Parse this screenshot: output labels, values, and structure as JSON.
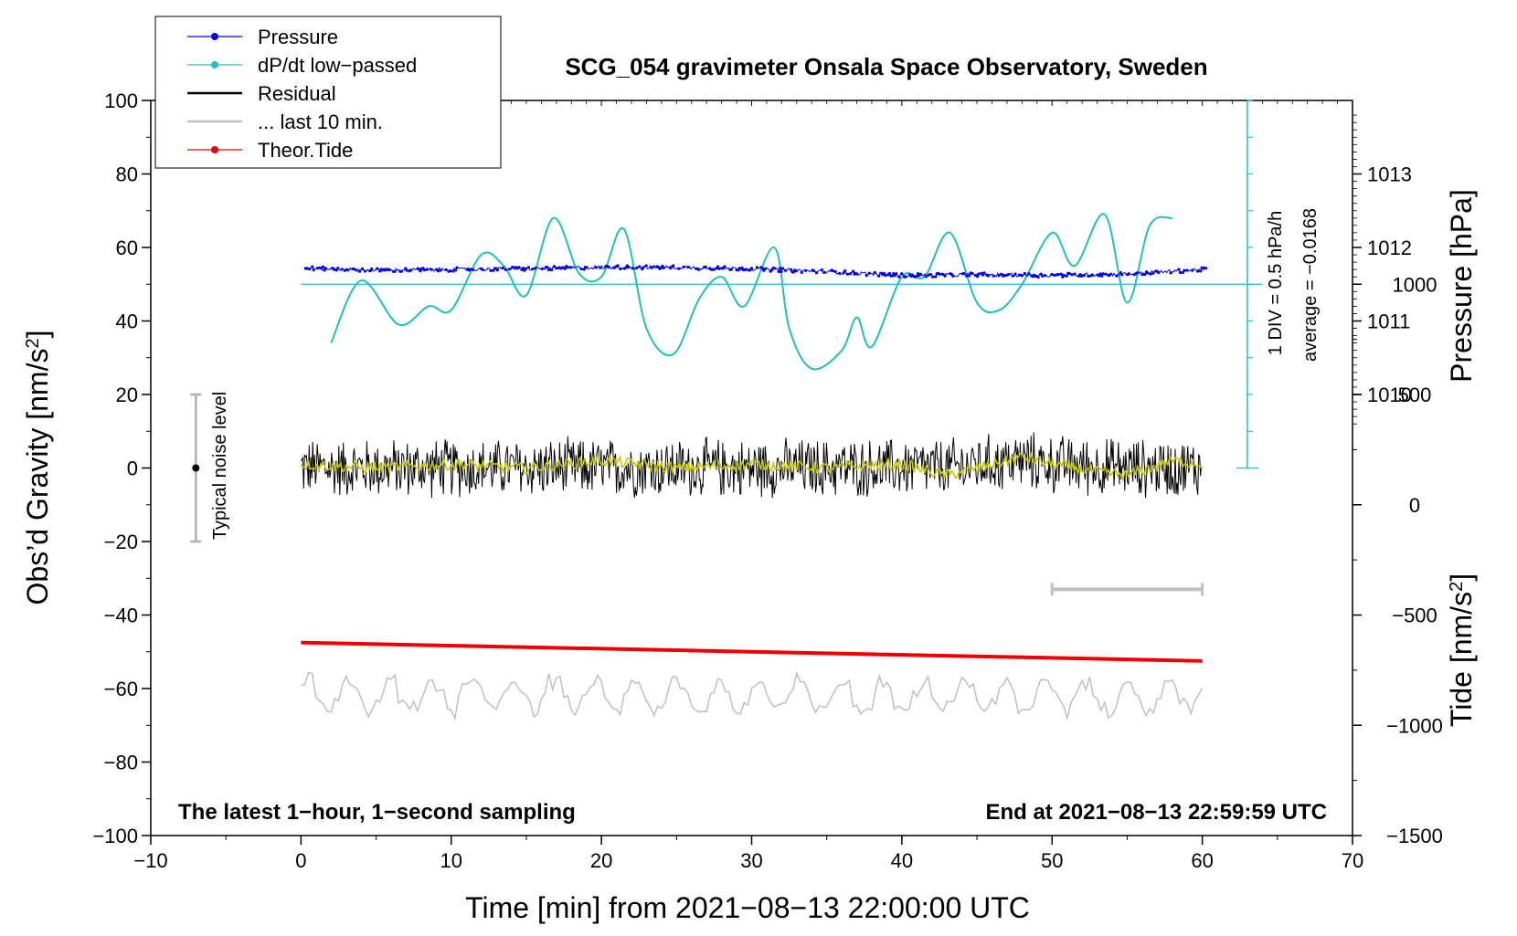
{
  "chart_data": {
    "type": "line",
    "title": "SCG_054 gravimeter Onsala Space Observatory, Sweden",
    "xlabel": "Time [min] from 2021−08−13 22:00:00 UTC",
    "ylabel_left_main": "Obs’d Gravity [nm/s",
    "ylabel_left_sup": "2",
    "ylabel_left_end": "]",
    "ylabel_right_pressure": "Pressure [hPa]",
    "ylabel_right_tide_main": "Tide [nm/s",
    "ylabel_right_tide_sup": "2",
    "ylabel_right_tide_end": "]",
    "xlim": [
      -10,
      70
    ],
    "ylim": [
      -100,
      100
    ],
    "x_ticks": [
      "−10",
      "0",
      "10",
      "20",
      "30",
      "40",
      "50",
      "60",
      "70"
    ],
    "x_tick_values": [
      -10,
      0,
      10,
      20,
      30,
      40,
      50,
      60,
      70
    ],
    "y_ticks": [
      "−100",
      "−80",
      "−60",
      "−40",
      "−20",
      "0",
      "20",
      "40",
      "60",
      "80",
      "100"
    ],
    "y_tick_values": [
      -100,
      -80,
      -60,
      -40,
      -20,
      0,
      20,
      40,
      60,
      80,
      100
    ],
    "pressure_ticks": [
      "1010",
      "1011",
      "1012",
      "1013"
    ],
    "pressure_tick_values": [
      1010,
      1011,
      1012,
      1013
    ],
    "pressure_axis": {
      "value_at_gravity_20": 1010,
      "hpa_per_20_nms2": 1
    },
    "tide_ticks": [
      "−1500",
      "−1000",
      "−500",
      "0",
      "500",
      "1000"
    ],
    "tide_tick_values": [
      -1500,
      -1000,
      -500,
      0,
      500,
      1000
    ],
    "tide_axis": {
      "value_at_gravity_minus_100": -1500,
      "nms2_per_gravity_unit": 16.667
    },
    "legend": [
      {
        "label": "Pressure",
        "color": "#0000ee",
        "style": "line-dot"
      },
      {
        "label": "dP/dt low−passed",
        "color": "#20c0c0",
        "style": "line-dot"
      },
      {
        "label": "Residual",
        "color": "#000000",
        "style": "line"
      },
      {
        "label": "... last 10 min.",
        "color": "#c0c0c0",
        "style": "line"
      },
      {
        "label": "Theor.Tide",
        "color": "#ee0000",
        "style": "line-dot"
      }
    ],
    "series": [
      {
        "name": "Pressure",
        "color": "#0000ee",
        "axis": "pressure_hpa",
        "x": [
          0,
          5,
          10,
          15,
          20,
          25,
          30,
          35,
          40,
          45,
          50,
          55,
          60
        ],
        "y": [
          1011.72,
          1011.69,
          1011.7,
          1011.71,
          1011.73,
          1011.73,
          1011.71,
          1011.67,
          1011.62,
          1011.63,
          1011.62,
          1011.64,
          1011.7
        ]
      },
      {
        "name": "dP/dt low−passed",
        "color": "#20c0c0",
        "axis": "gravity_plot_units",
        "x": [
          2,
          4,
          6.5,
          8.5,
          10,
          12,
          13.5,
          15,
          16.8,
          18.5,
          20,
          21.5,
          23,
          24.8,
          26.5,
          28,
          29.5,
          31.5,
          32.5,
          34,
          36,
          37,
          38,
          40,
          41.5,
          43.2,
          45,
          46.5,
          48,
          50,
          51.5,
          53.5,
          55,
          56.5,
          58
        ],
        "y": [
          34,
          51,
          39,
          44,
          43,
          58,
          55,
          47,
          68,
          53,
          52,
          65,
          38,
          31,
          46,
          52,
          44,
          60,
          38,
          27,
          32,
          41,
          33,
          52,
          52,
          64,
          45,
          43,
          50,
          64,
          55,
          69,
          45,
          66,
          68
        ]
      },
      {
        "name": "Residual",
        "color": "#000000",
        "axis": "gravity_nms2",
        "noise_amplitude": 9,
        "x": [
          0,
          10,
          20,
          30,
          40,
          43,
          48,
          50,
          55,
          60
        ],
        "y": [
          0,
          0,
          0,
          0,
          0,
          0,
          2,
          1,
          0,
          0
        ]
      },
      {
        "name": "Residual smoothed",
        "color": "#c8c800",
        "axis": "gravity_nms2",
        "x": [
          0,
          5,
          10,
          15,
          20,
          25,
          30,
          35,
          40,
          43,
          46,
          48,
          50,
          53,
          55,
          58,
          60
        ],
        "y": [
          1,
          0,
          1,
          0,
          2,
          0,
          1,
          0,
          1,
          -2,
          1,
          3,
          1,
          -1,
          -2,
          2,
          1
        ]
      },
      {
        "name": "... last 10 min.",
        "color": "#c0c0c0",
        "axis": "gravity_nms2",
        "center": -62,
        "noise_amplitude": 6,
        "x": [
          0,
          60
        ],
        "y": [
          -62,
          -62
        ]
      },
      {
        "name": "Theor.Tide",
        "color": "#ee0000",
        "axis": "gravity_plot_units",
        "x": [
          0,
          60
        ],
        "y": [
          -47.5,
          -52.5
        ]
      }
    ],
    "annotations": {
      "dpdt_scale_label": "1 DIV = 0.5 hPa/h",
      "dpdt_average_label": "average = −0.0168",
      "dpdt_zero_level": 50,
      "noise_label": "Typical noise level",
      "noise_bar": {
        "x": -7,
        "y_min": -20,
        "y_max": 20
      },
      "last10_bar": {
        "x_start": 50,
        "x_end": 60,
        "y": -33
      },
      "footer_left": "The latest 1−hour, 1−second sampling",
      "footer_right": "End at 2021−08−13 22:59:59 UTC"
    }
  }
}
